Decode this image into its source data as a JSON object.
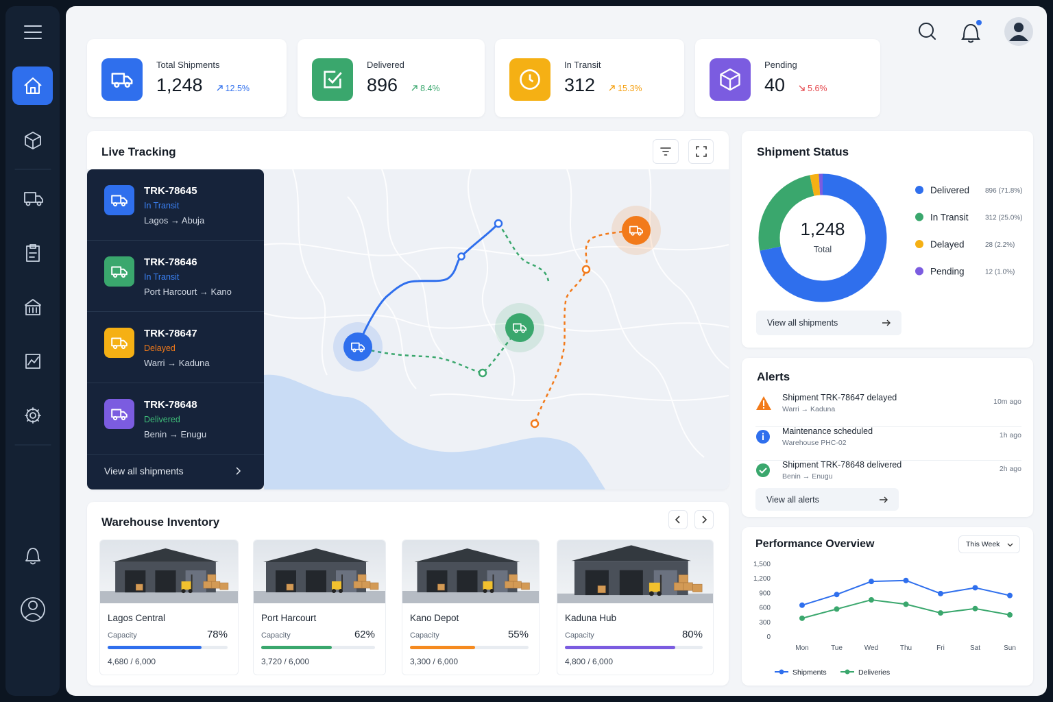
{
  "stats": [
    {
      "label": "Total Shipments",
      "value": "1,248",
      "change": "12.5%",
      "direction": "up",
      "icon": "truck",
      "icon_color": "#2f6fed",
      "change_color": "#2f6fed"
    },
    {
      "label": "Delivered",
      "value": "896",
      "change": "8.4%",
      "direction": "up",
      "icon": "check",
      "icon_color": "#3aa76d",
      "change_color": "#3aa76d"
    },
    {
      "label": "In Transit",
      "value": "312",
      "change": "15.3%",
      "direction": "up",
      "icon": "clock",
      "icon_color": "#f5b014",
      "change_color": "#f59e0b"
    },
    {
      "label": "Pending",
      "value": "40",
      "change": "5.6%",
      "direction": "down",
      "icon": "box",
      "icon_color": "#7b5ce0",
      "change_color": "#e5484d"
    }
  ],
  "tracking": {
    "title": "Live Tracking",
    "shipments": [
      {
        "id": "TRK-78645",
        "status": "In Transit",
        "route": "Lagos → Abuja",
        "color": "#2f6fed",
        "status_color": "#3b82f6"
      },
      {
        "id": "TRK-78646",
        "status": "In Transit",
        "route": "Port Harcourt → Kano",
        "color": "#3aa76d",
        "status_color": "#3b82f6"
      },
      {
        "id": "TRK-78647",
        "status": "Delayed",
        "route": "Warri → Kaduna",
        "color": "#f5b014",
        "status_color": "#f27a1a"
      },
      {
        "id": "TRK-78648",
        "status": "Delivered",
        "route": "Benin → Enugu",
        "color": "#7b5ce0",
        "status_color": "#3fbf7a"
      }
    ],
    "link": "View all shipments"
  },
  "warehouses": {
    "title": "Warehouse Inventory",
    "capacity_label": "Capacity",
    "items": [
      {
        "name": "Lagos Central",
        "percent": 78,
        "percent_label": "78%",
        "amounts": "4,680 / 6,000",
        "color": "#2f6fed"
      },
      {
        "name": "Port Harcourt",
        "percent": 62,
        "percent_label": "62%",
        "amounts": "3,720 / 6,000",
        "color": "#3aa76d"
      },
      {
        "name": "Kano Depot",
        "percent": 55,
        "percent_label": "55%",
        "amounts": "3,300 / 6,000",
        "color": "#f58a1f"
      },
      {
        "name": "Kaduna Hub",
        "percent": 80,
        "percent_label": "80%",
        "amounts": "4,800 / 6,000",
        "color": "#7b5ce0"
      }
    ]
  },
  "status": {
    "title": "Shipment Status",
    "total": "1,248",
    "total_label": "Total",
    "link": "View all shipments"
  },
  "alerts": {
    "title": "Alerts",
    "items": [
      {
        "icon": "warning",
        "text": "Shipment TRK-78647 delayed",
        "detail": "Warri → Kaduna",
        "time": "10m ago"
      },
      {
        "icon": "info",
        "text": "Maintenance scheduled",
        "detail": "Warehouse PHC-02",
        "time": "1h ago"
      },
      {
        "icon": "success",
        "text": "Shipment TRK-78648 delivered",
        "detail": "Benin → Enugu",
        "time": "2h ago"
      }
    ],
    "link": "View all alerts"
  },
  "performance": {
    "title": "Performance Overview",
    "period": "This Week"
  },
  "chart_data": [
    {
      "type": "pie",
      "donut": true,
      "categories": [
        "Delivered",
        "In Transit",
        "Delayed",
        "Pending"
      ],
      "values": [
        896,
        312,
        28,
        12
      ],
      "value_labels": [
        "896 (71.8%)",
        "312 (25.0%)",
        "28 (2.2%)",
        "12 (1.0%)"
      ],
      "colors": [
        "#2f6fed",
        "#3aa76d",
        "#f5b014",
        "#7b5ce0"
      ],
      "legend": "right"
    },
    {
      "type": "line",
      "categories": [
        "Mon",
        "Tue",
        "Wed",
        "Thu",
        "Fri",
        "Sat",
        "Sun"
      ],
      "series": [
        {
          "name": "Shipments",
          "color": "#2f6fed",
          "values": [
            640,
            860,
            1130,
            1150,
            880,
            1000,
            840
          ]
        },
        {
          "name": "Deliveries",
          "color": "#3aa76d",
          "values": [
            370,
            560,
            750,
            660,
            480,
            570,
            440
          ]
        }
      ],
      "ylim": [
        0,
        1500
      ],
      "yticks": [
        0,
        300,
        600,
        900,
        {
          "value": 1200,
          "label": "1,200"
        },
        {
          "value": 1500,
          "label": "1,500"
        }
      ],
      "grid": false,
      "legend": "bottom"
    }
  ]
}
